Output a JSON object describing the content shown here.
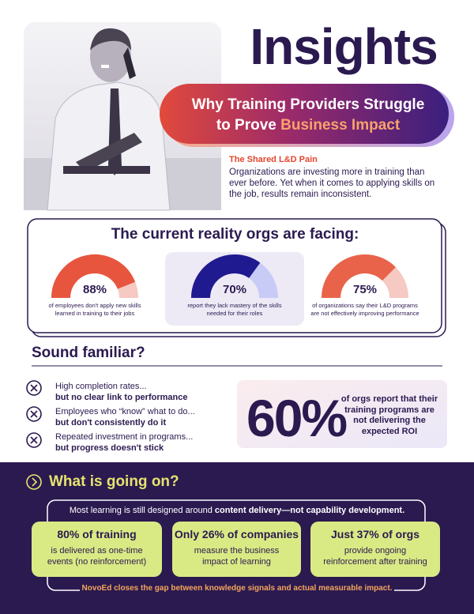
{
  "header": {
    "title": "Insights",
    "subtitle_line1": "Why Training Providers Struggle",
    "subtitle_line2": "to Prove",
    "subtitle_highlight": "Business Impact"
  },
  "intro": {
    "heading": "The Shared L&D Pain",
    "text": "Organizations are investing more in training than ever before. Yet when it comes to applying skills on the job, results remain inconsistent."
  },
  "reality": {
    "title": "The current reality orgs are facing:",
    "stats": [
      {
        "value": 88,
        "label": "88%",
        "text": "of employees don't apply new skills learned in training to their jobs"
      },
      {
        "value": 70,
        "label": "70%",
        "text": "report they lack mastery of the skills needed for their roles"
      },
      {
        "value": 75,
        "label": "75%",
        "text": "of organizations say their L&D programs are not effectively improving performance"
      }
    ]
  },
  "familiar": {
    "title": "Sound familiar?",
    "items": [
      {
        "line1": "High completion rates...",
        "line2": "but no clear link to performance"
      },
      {
        "line1": "Employees who “know” what to do...",
        "line2": "but don't consistently do it"
      },
      {
        "line1": "Repeated investment in programs...",
        "line2": "but progress doesn't stick"
      }
    ],
    "highlight": {
      "number": "60%",
      "text": "of orgs report that their training programs are not delivering the expected ROI"
    }
  },
  "going_on": {
    "title": "What is going on?",
    "lead": "Most learning is still designed around",
    "lead_bold": "content delivery—not capability development.",
    "cards": [
      {
        "heading": "80% of training",
        "text": "is delivered as one-time events (no reinforcement)"
      },
      {
        "heading": "Only 26% of companies",
        "text": "measure the business impact of learning"
      },
      {
        "heading": "Just 37% of orgs",
        "text": "provide ongoing reinforcement after training"
      }
    ],
    "footer": "NovoEd closes the gap between knowledge signals and actual measurable impact."
  }
}
